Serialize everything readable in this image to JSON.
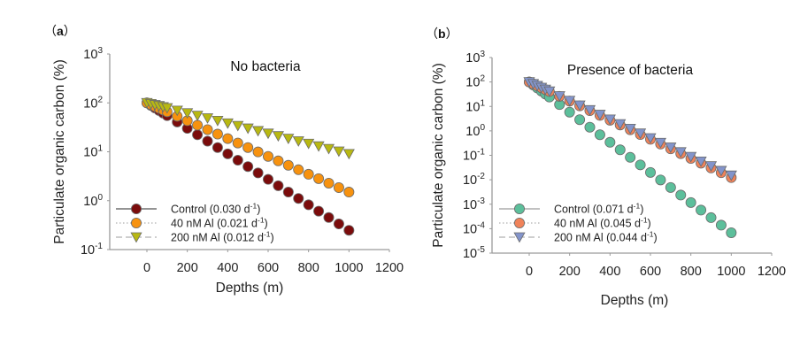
{
  "figure": {
    "x_depths_note": "depths sampled at 0,20,40,60,80,100 then every 50 m to 1000 m"
  },
  "chart_data": [
    {
      "type": "scatter",
      "panel_label": "a",
      "title": "No bacteria",
      "xlabel": "Depths (m)",
      "ylabel": "Particulate organic carbon (%)",
      "xlim": [
        -185,
        1200
      ],
      "ylim": [
        0.1,
        1000
      ],
      "yscale": "log",
      "x_ticks": [
        0,
        200,
        400,
        600,
        800,
        1000,
        1200
      ],
      "y_ticks": [
        {
          "base": "10",
          "exp": "-1",
          "value": 0.1
        },
        {
          "base": "10",
          "exp": "0",
          "value": 1
        },
        {
          "base": "10",
          "exp": "1",
          "value": 10
        },
        {
          "base": "10",
          "exp": "2",
          "value": 100
        },
        {
          "base": "10",
          "exp": "3",
          "value": 1000
        }
      ],
      "legend_position": "bottom-left",
      "x": [
        0,
        20,
        40,
        60,
        80,
        100,
        150,
        200,
        250,
        300,
        350,
        400,
        450,
        500,
        550,
        600,
        650,
        700,
        750,
        800,
        850,
        900,
        950,
        1000
      ],
      "series": [
        {
          "name": "Control",
          "rate": "0.030",
          "marker": "circle",
          "line": "solid",
          "color": "#7b0c0c",
          "values": [
            100,
            88.7,
            78.7,
            69.8,
            61.9,
            54.9,
            40.7,
            30.1,
            22.3,
            16.5,
            12.2,
            9.07,
            6.72,
            4.98,
            3.69,
            2.73,
            2.02,
            1.5,
            1.11,
            0.823,
            0.61,
            0.452,
            0.335,
            0.248
          ]
        },
        {
          "name": "40 nM Al",
          "rate": "0.021",
          "marker": "circle",
          "line": "dotted",
          "color": "#f7920f",
          "values": [
            100,
            92.0,
            84.5,
            77.7,
            71.5,
            65.7,
            53.3,
            43.2,
            35.0,
            28.4,
            23.0,
            18.6,
            15.1,
            12.2,
            9.93,
            8.05,
            6.52,
            5.29,
            4.29,
            3.47,
            2.82,
            2.28,
            1.85,
            1.5
          ]
        },
        {
          "name": "200 nM Al",
          "rate": "0.012",
          "marker": "triangle-down",
          "line": "dashed",
          "color": "#b8b812",
          "values": [
            100,
            95.3,
            90.9,
            86.6,
            82.5,
            78.7,
            69.8,
            61.9,
            54.9,
            48.7,
            43.2,
            38.3,
            34.0,
            30.1,
            26.7,
            23.7,
            21.0,
            18.6,
            16.5,
            14.7,
            13.0,
            11.5,
            10.2,
            9.07
          ]
        }
      ],
      "legend": [
        {
          "label": "Control (0.030 d",
          "sup": "-1",
          "close": ")"
        },
        {
          "label": "40 nM Al (0.021 d",
          "sup": "-1",
          "close": ")"
        },
        {
          "label": "200 nM Al (0.012 d",
          "sup": "-1",
          "close": ")"
        }
      ]
    },
    {
      "type": "scatter",
      "panel_label": "b",
      "title": "Presence of bacteria",
      "xlabel": "Depths (m)",
      "ylabel": "Particulate organic carbon (%)",
      "xlim": [
        -185,
        1200
      ],
      "ylim": [
        1e-05,
        1000
      ],
      "yscale": "log",
      "x_ticks": [
        0,
        200,
        400,
        600,
        800,
        1000,
        1200
      ],
      "y_ticks": [
        {
          "base": "10",
          "exp": "-5",
          "value": 1e-05
        },
        {
          "base": "10",
          "exp": "-4",
          "value": 0.0001
        },
        {
          "base": "10",
          "exp": "-3",
          "value": 0.001
        },
        {
          "base": "10",
          "exp": "-2",
          "value": 0.01
        },
        {
          "base": "10",
          "exp": "-1",
          "value": 0.1
        },
        {
          "base": "10",
          "exp": "0",
          "value": 1
        },
        {
          "base": "10",
          "exp": "1",
          "value": 10
        },
        {
          "base": "10",
          "exp": "2",
          "value": 100
        },
        {
          "base": "10",
          "exp": "3",
          "value": 1000
        }
      ],
      "legend_position": "bottom-left",
      "x": [
        0,
        20,
        40,
        60,
        80,
        100,
        150,
        200,
        250,
        300,
        350,
        400,
        450,
        500,
        550,
        600,
        650,
        700,
        750,
        800,
        850,
        900,
        950,
        1000
      ],
      "series": [
        {
          "name": "Control",
          "rate": "0.071",
          "marker": "circle",
          "line": "solid",
          "color": "#5cbf9b",
          "values": [
            100,
            75.3,
            56.7,
            42.7,
            32.1,
            24.2,
            11.9,
            5.84,
            2.87,
            1.41,
            0.694,
            0.341,
            0.168,
            0.0825,
            0.0406,
            0.0199,
            0.00981,
            0.00482,
            0.00237,
            0.00117,
            0.000574,
            0.000282,
            0.000139,
            6.83e-05
          ]
        },
        {
          "name": "40 nM Al",
          "rate": "0.045",
          "marker": "circle",
          "line": "dotted",
          "color": "#f0835a",
          "values": [
            100,
            83.5,
            69.8,
            58.3,
            48.7,
            40.7,
            25.9,
            16.5,
            10.5,
            6.72,
            4.29,
            2.73,
            1.74,
            1.11,
            0.708,
            0.452,
            0.288,
            0.184,
            0.117,
            0.0747,
            0.0477,
            0.0304,
            0.0194,
            0.0123
          ]
        },
        {
          "name": "200 nM Al",
          "rate": "0.044",
          "marker": "triangle-down",
          "line": "dashed",
          "color": "#8394cb",
          "values": [
            100,
            83.8,
            70.3,
            58.9,
            49.4,
            41.5,
            26.7,
            17.2,
            11.1,
            7.14,
            4.6,
            2.96,
            1.91,
            1.23,
            0.791,
            0.509,
            0.328,
            0.211,
            0.136,
            0.0876,
            0.0564,
            0.0363,
            0.0234,
            0.0151
          ]
        }
      ],
      "legend": [
        {
          "label": "Control (0.071 d",
          "sup": "-1",
          "close": ")"
        },
        {
          "label": "40 nM Al (0.045 d",
          "sup": "-1",
          "close": ")"
        },
        {
          "label": "200 nM Al (0.044 d",
          "sup": "-1",
          "close": ")"
        }
      ]
    }
  ]
}
